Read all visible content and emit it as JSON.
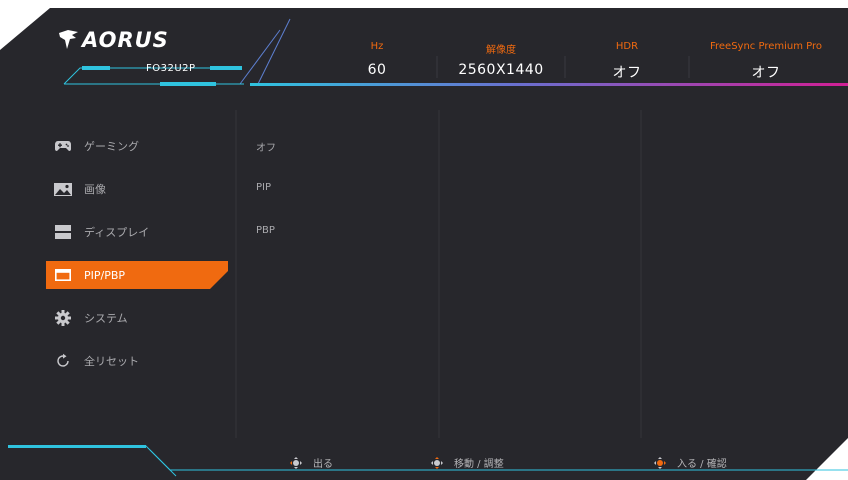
{
  "brand": {
    "logo_text": "AORUS",
    "model": "FO32U2P"
  },
  "header": {
    "columns": [
      {
        "label": "Hz",
        "value": "60"
      },
      {
        "label": "解像度",
        "value": "2560X1440"
      },
      {
        "label": "HDR",
        "value": "オフ"
      },
      {
        "label": "FreeSync Premium Pro",
        "value": "オフ"
      }
    ]
  },
  "menu": {
    "items": [
      {
        "label": "ゲーミング",
        "icon": "gamepad-icon"
      },
      {
        "label": "画像",
        "icon": "picture-icon"
      },
      {
        "label": "ディスプレイ",
        "icon": "display-icon"
      },
      {
        "label": "PIP/PBP",
        "icon": "pip-icon",
        "active": true
      },
      {
        "label": "システム",
        "icon": "gear-icon"
      },
      {
        "label": "全リセット",
        "icon": "reset-icon"
      }
    ]
  },
  "submenu": {
    "items": [
      "オフ",
      "PIP",
      "PBP"
    ]
  },
  "footer": {
    "exit": "出る",
    "move": "移動 / 調整",
    "enter": "入る / 確認"
  },
  "colors": {
    "accent": "#f06a10",
    "background": "#27272c",
    "cyan": "#2fc3df",
    "magenta": "#c8219a",
    "text": "#a9a9ad"
  }
}
